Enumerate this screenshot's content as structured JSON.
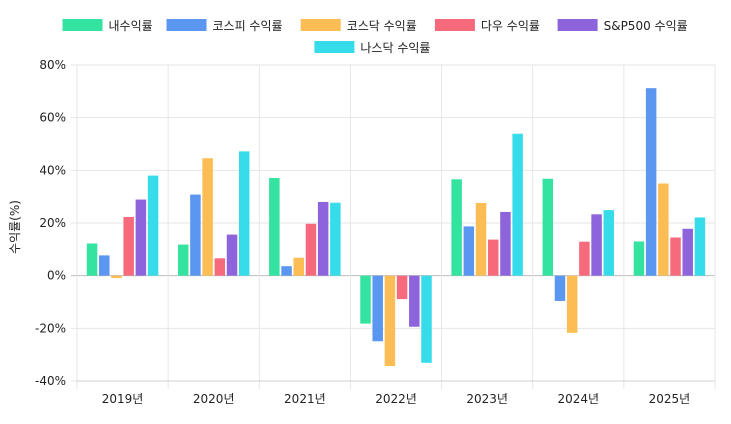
{
  "chart_data": {
    "type": "bar",
    "title": "",
    "xlabel": "",
    "ylabel": "수익률(%)",
    "ylim": [
      -40,
      80
    ],
    "y_ticks": [
      -40,
      -20,
      0,
      20,
      40,
      60,
      80
    ],
    "y_tick_suffix": "%",
    "grid": true,
    "legend_position": "top-center",
    "categories": [
      "2019년",
      "2020년",
      "2021년",
      "2022년",
      "2023년",
      "2024년",
      "2025년"
    ],
    "series": [
      {
        "name": "내수익률",
        "color": "#34e3a0",
        "values": [
          12.2,
          11.8,
          37.1,
          -18.2,
          36.6,
          36.8,
          13.0
        ]
      },
      {
        "name": "코스피 수익률",
        "color": "#5b96f0",
        "values": [
          7.7,
          30.8,
          3.6,
          -24.9,
          18.7,
          -9.6,
          71.2
        ]
      },
      {
        "name": "코스닥 수익률",
        "color": "#fbbd54",
        "values": [
          -0.9,
          44.6,
          6.8,
          -34.3,
          27.6,
          -21.7,
          35.0
        ]
      },
      {
        "name": "다우 수익률",
        "color": "#f76a7c",
        "values": [
          22.3,
          6.6,
          19.7,
          -8.9,
          13.7,
          12.9,
          14.5
        ]
      },
      {
        "name": "S&P500 수익률",
        "color": "#8d64dc",
        "values": [
          28.9,
          15.6,
          28.0,
          -19.4,
          24.2,
          23.3,
          17.8
        ]
      },
      {
        "name": "나스닥 수익률",
        "color": "#37dcea",
        "values": [
          38.0,
          47.2,
          27.7,
          -33.1,
          53.9,
          24.9,
          22.1
        ]
      }
    ]
  }
}
